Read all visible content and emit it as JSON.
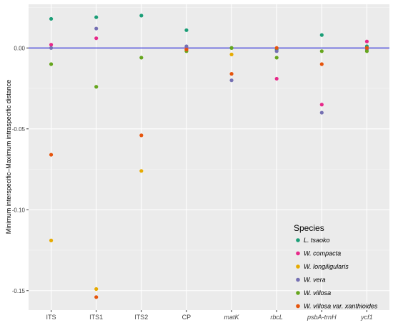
{
  "chart_data": {
    "type": "scatter",
    "title": "",
    "xlabel": "",
    "ylabel": "Minimum interspecific–Maximum intraspecific  distance",
    "categories": [
      "ITS",
      "ITS1",
      "ITS2",
      "CP",
      "matK",
      "rbcL",
      "psbA-trnH",
      "ycf1"
    ],
    "category_labels": [
      [
        {
          "t": "ITS",
          "i": false
        }
      ],
      [
        {
          "t": "ITS1",
          "i": false
        }
      ],
      [
        {
          "t": "ITS2",
          "i": false
        }
      ],
      [
        {
          "t": "CP",
          "i": false
        }
      ],
      [
        {
          "t": "matK",
          "i": true
        }
      ],
      [
        {
          "t": "rbcL",
          "i": true
        }
      ],
      [
        {
          "t": "psbA",
          "i": true
        },
        {
          "t": "-",
          "i": false
        },
        {
          "t": "trnH",
          "i": true
        }
      ],
      [
        {
          "t": "ycf1",
          "i": true
        }
      ]
    ],
    "ylim": [
      -0.162,
      0.027
    ],
    "y_ticks": [
      0.0,
      -0.05,
      -0.1,
      -0.15
    ],
    "y_tick_labels": [
      "0.00",
      "-0.05",
      "-0.10",
      "-0.15"
    ],
    "reference_line": {
      "y": 0,
      "color": "#0000cc"
    },
    "grid": true,
    "legend": {
      "title": "Species",
      "position": "bottom-right"
    },
    "series": [
      {
        "name": "L. tsaoko",
        "color": "#1b9e77",
        "values": [
          0.018,
          0.019,
          0.02,
          0.011,
          0.0,
          -0.001,
          0.008,
          0.001
        ]
      },
      {
        "name": "W. compacta",
        "color": "#e7298a",
        "values": [
          0.002,
          0.006,
          null,
          0.0,
          null,
          -0.019,
          -0.035,
          0.004
        ]
      },
      {
        "name": "W. longiligularis",
        "color": "#e6ab02",
        "values": [
          -0.119,
          -0.149,
          -0.076,
          -0.001,
          -0.004,
          null,
          null,
          0.0
        ]
      },
      {
        "name": "W. vera",
        "color": "#7570b3",
        "values": [
          0.0,
          0.012,
          null,
          0.001,
          -0.02,
          -0.002,
          -0.04,
          -0.001
        ]
      },
      {
        "name": "W. villosa",
        "color": "#66a61e",
        "values": [
          -0.01,
          -0.024,
          -0.006,
          -0.002,
          0.0,
          -0.006,
          -0.002,
          -0.002
        ]
      },
      {
        "name": "W. villosa var. xanthioides",
        "color": "#e6550d",
        "values": [
          -0.066,
          -0.154,
          -0.054,
          -0.001,
          -0.016,
          0.0,
          -0.01,
          0.0
        ]
      }
    ]
  }
}
